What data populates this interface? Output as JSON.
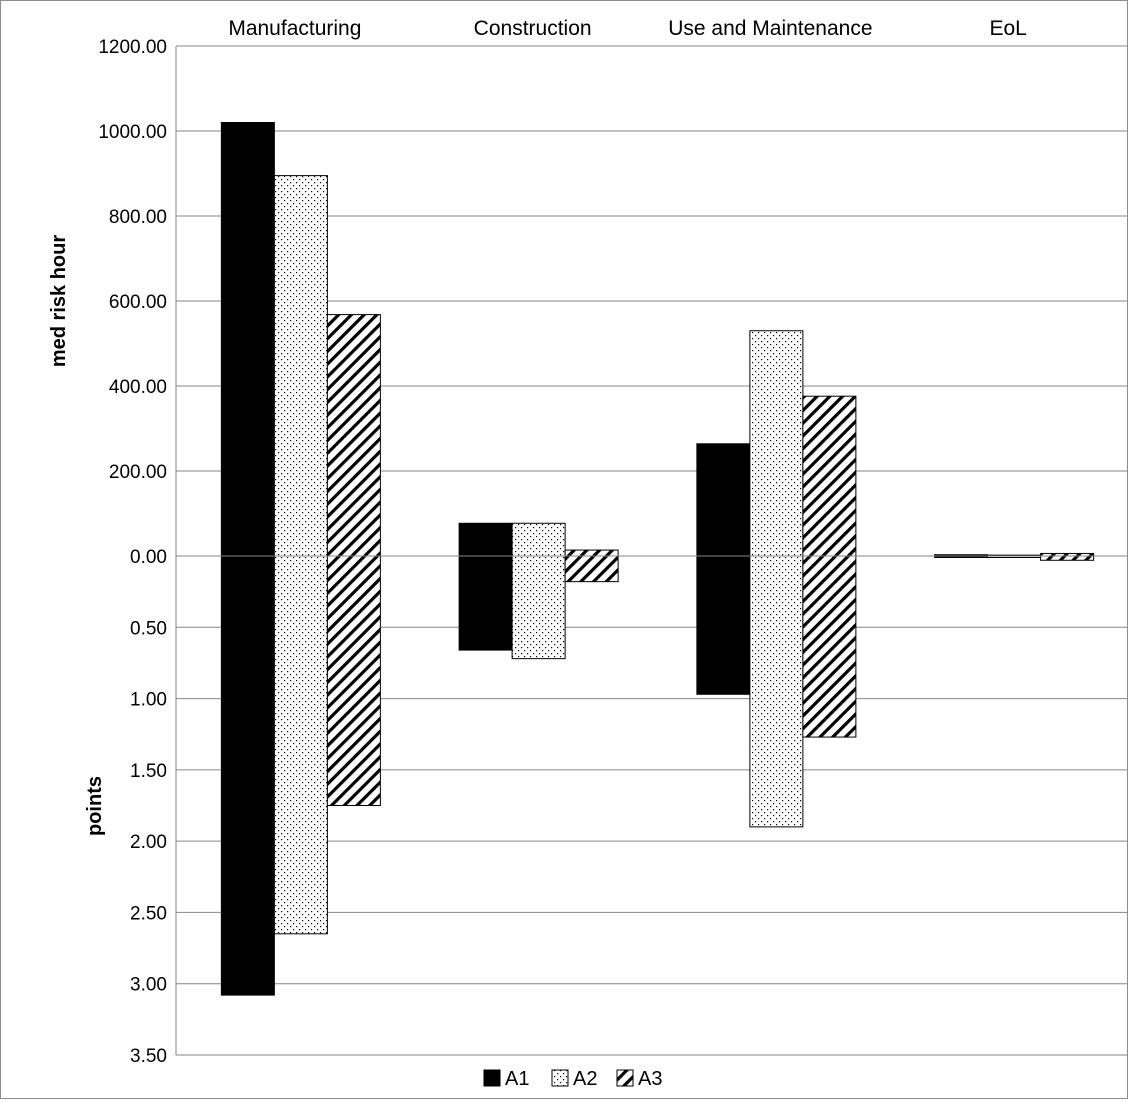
{
  "chart_data": {
    "type": "bar",
    "categories": [
      "Manufacturing",
      "Construction",
      "Use and Maintenance",
      "EoL"
    ],
    "upper_panel": {
      "ylabel": "med risk hour",
      "ylim": [
        0,
        1200
      ],
      "ticks": [
        "0.00",
        "200.00",
        "400.00",
        "600.00",
        "800.00",
        "1000.00",
        "1200.00"
      ],
      "series": [
        {
          "name": "A1",
          "values": [
            1020,
            77,
            264,
            3
          ]
        },
        {
          "name": "A2",
          "values": [
            895,
            77,
            530,
            2
          ]
        },
        {
          "name": "A3",
          "values": [
            568,
            14,
            376,
            6
          ]
        }
      ]
    },
    "lower_panel": {
      "ylabel": "points",
      "ylim": [
        0,
        3.5
      ],
      "inverted": true,
      "ticks": [
        "0.00",
        "0.50",
        "1.00",
        "1.50",
        "2.00",
        "2.50",
        "3.00",
        "3.50"
      ],
      "series": [
        {
          "name": "A1",
          "values": [
            3.08,
            0.66,
            0.97,
            0.005
          ]
        },
        {
          "name": "A2",
          "values": [
            2.65,
            0.72,
            1.9,
            0.01
          ]
        },
        {
          "name": "A3",
          "values": [
            1.75,
            0.18,
            1.27,
            0.03
          ]
        }
      ]
    },
    "legend": {
      "position": "bottom",
      "items": [
        {
          "name": "A1",
          "pattern": "solid"
        },
        {
          "name": "A2",
          "pattern": "dots"
        },
        {
          "name": "A3",
          "pattern": "diagonal-hatch"
        }
      ]
    },
    "grid": true,
    "colors": {
      "bar_fill": "#000000",
      "bar_stroke": "#000000",
      "grid": "#868686",
      "background": "#ffffff"
    }
  }
}
